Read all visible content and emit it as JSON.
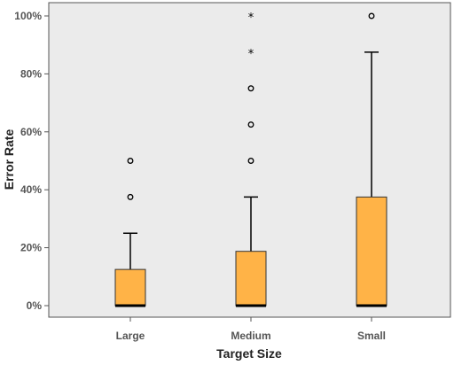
{
  "chart_data": {
    "type": "boxplot",
    "xlabel": "Target Size",
    "ylabel": "Error Rate",
    "categories": [
      "Large",
      "Medium",
      "Small"
    ],
    "ylim": [
      0,
      100
    ],
    "yticks": [
      0,
      20,
      40,
      60,
      80,
      100
    ],
    "ytick_labels": [
      "0%",
      "20%",
      "40%",
      "60%",
      "80%",
      "100%"
    ],
    "grid": false,
    "box_color": "#FFB347",
    "plot_background": "#EBEBEB",
    "boxes": [
      {
        "category": "Large",
        "whisker_low": 0,
        "q1": 0,
        "median": 0,
        "q3": 12.5,
        "whisker_high": 25,
        "outliers": [
          37.5,
          50
        ],
        "extremes": []
      },
      {
        "category": "Medium",
        "whisker_low": 0,
        "q1": 0,
        "median": 0,
        "q3": 18.75,
        "whisker_high": 37.5,
        "outliers": [
          50,
          62.5,
          75
        ],
        "extremes": [
          87.5,
          100
        ]
      },
      {
        "category": "Small",
        "whisker_low": 0,
        "q1": 0,
        "median": 0,
        "q3": 37.5,
        "whisker_high": 87.5,
        "outliers": [
          100
        ],
        "extremes": []
      }
    ]
  }
}
